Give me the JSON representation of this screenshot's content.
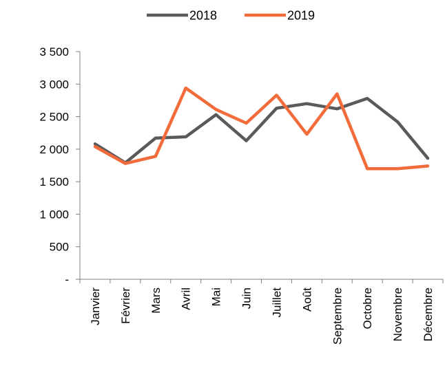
{
  "chart_data": {
    "type": "line",
    "categories": [
      "Janvier",
      "Février",
      "Mars",
      "Avril",
      "Mai",
      "Juin",
      "Juillet",
      "Août",
      "Septembre",
      "Octobre",
      "Novembre",
      "Décembre"
    ],
    "series": [
      {
        "name": "2018",
        "color": "#5a5a5a",
        "values": [
          2080,
          1790,
          2170,
          2190,
          2530,
          2130,
          2630,
          2700,
          2620,
          2780,
          2420,
          1860
        ]
      },
      {
        "name": "2019",
        "color": "#f26b3a",
        "values": [
          2040,
          1780,
          1890,
          2940,
          2610,
          2400,
          2830,
          2230,
          2850,
          1700,
          1700,
          1740
        ]
      }
    ],
    "y_ticks": [
      {
        "value": 0,
        "label": "-"
      },
      {
        "value": 500,
        "label": "500"
      },
      {
        "value": 1000,
        "label": "1 000"
      },
      {
        "value": 1500,
        "label": "1 500"
      },
      {
        "value": 2000,
        "label": "2 000"
      },
      {
        "value": 2500,
        "label": "2 500"
      },
      {
        "value": 3000,
        "label": "3 000"
      },
      {
        "value": 3500,
        "label": "3 500"
      }
    ],
    "ylim": [
      0,
      3500
    ],
    "grid": false,
    "legend_position": "top-center"
  }
}
